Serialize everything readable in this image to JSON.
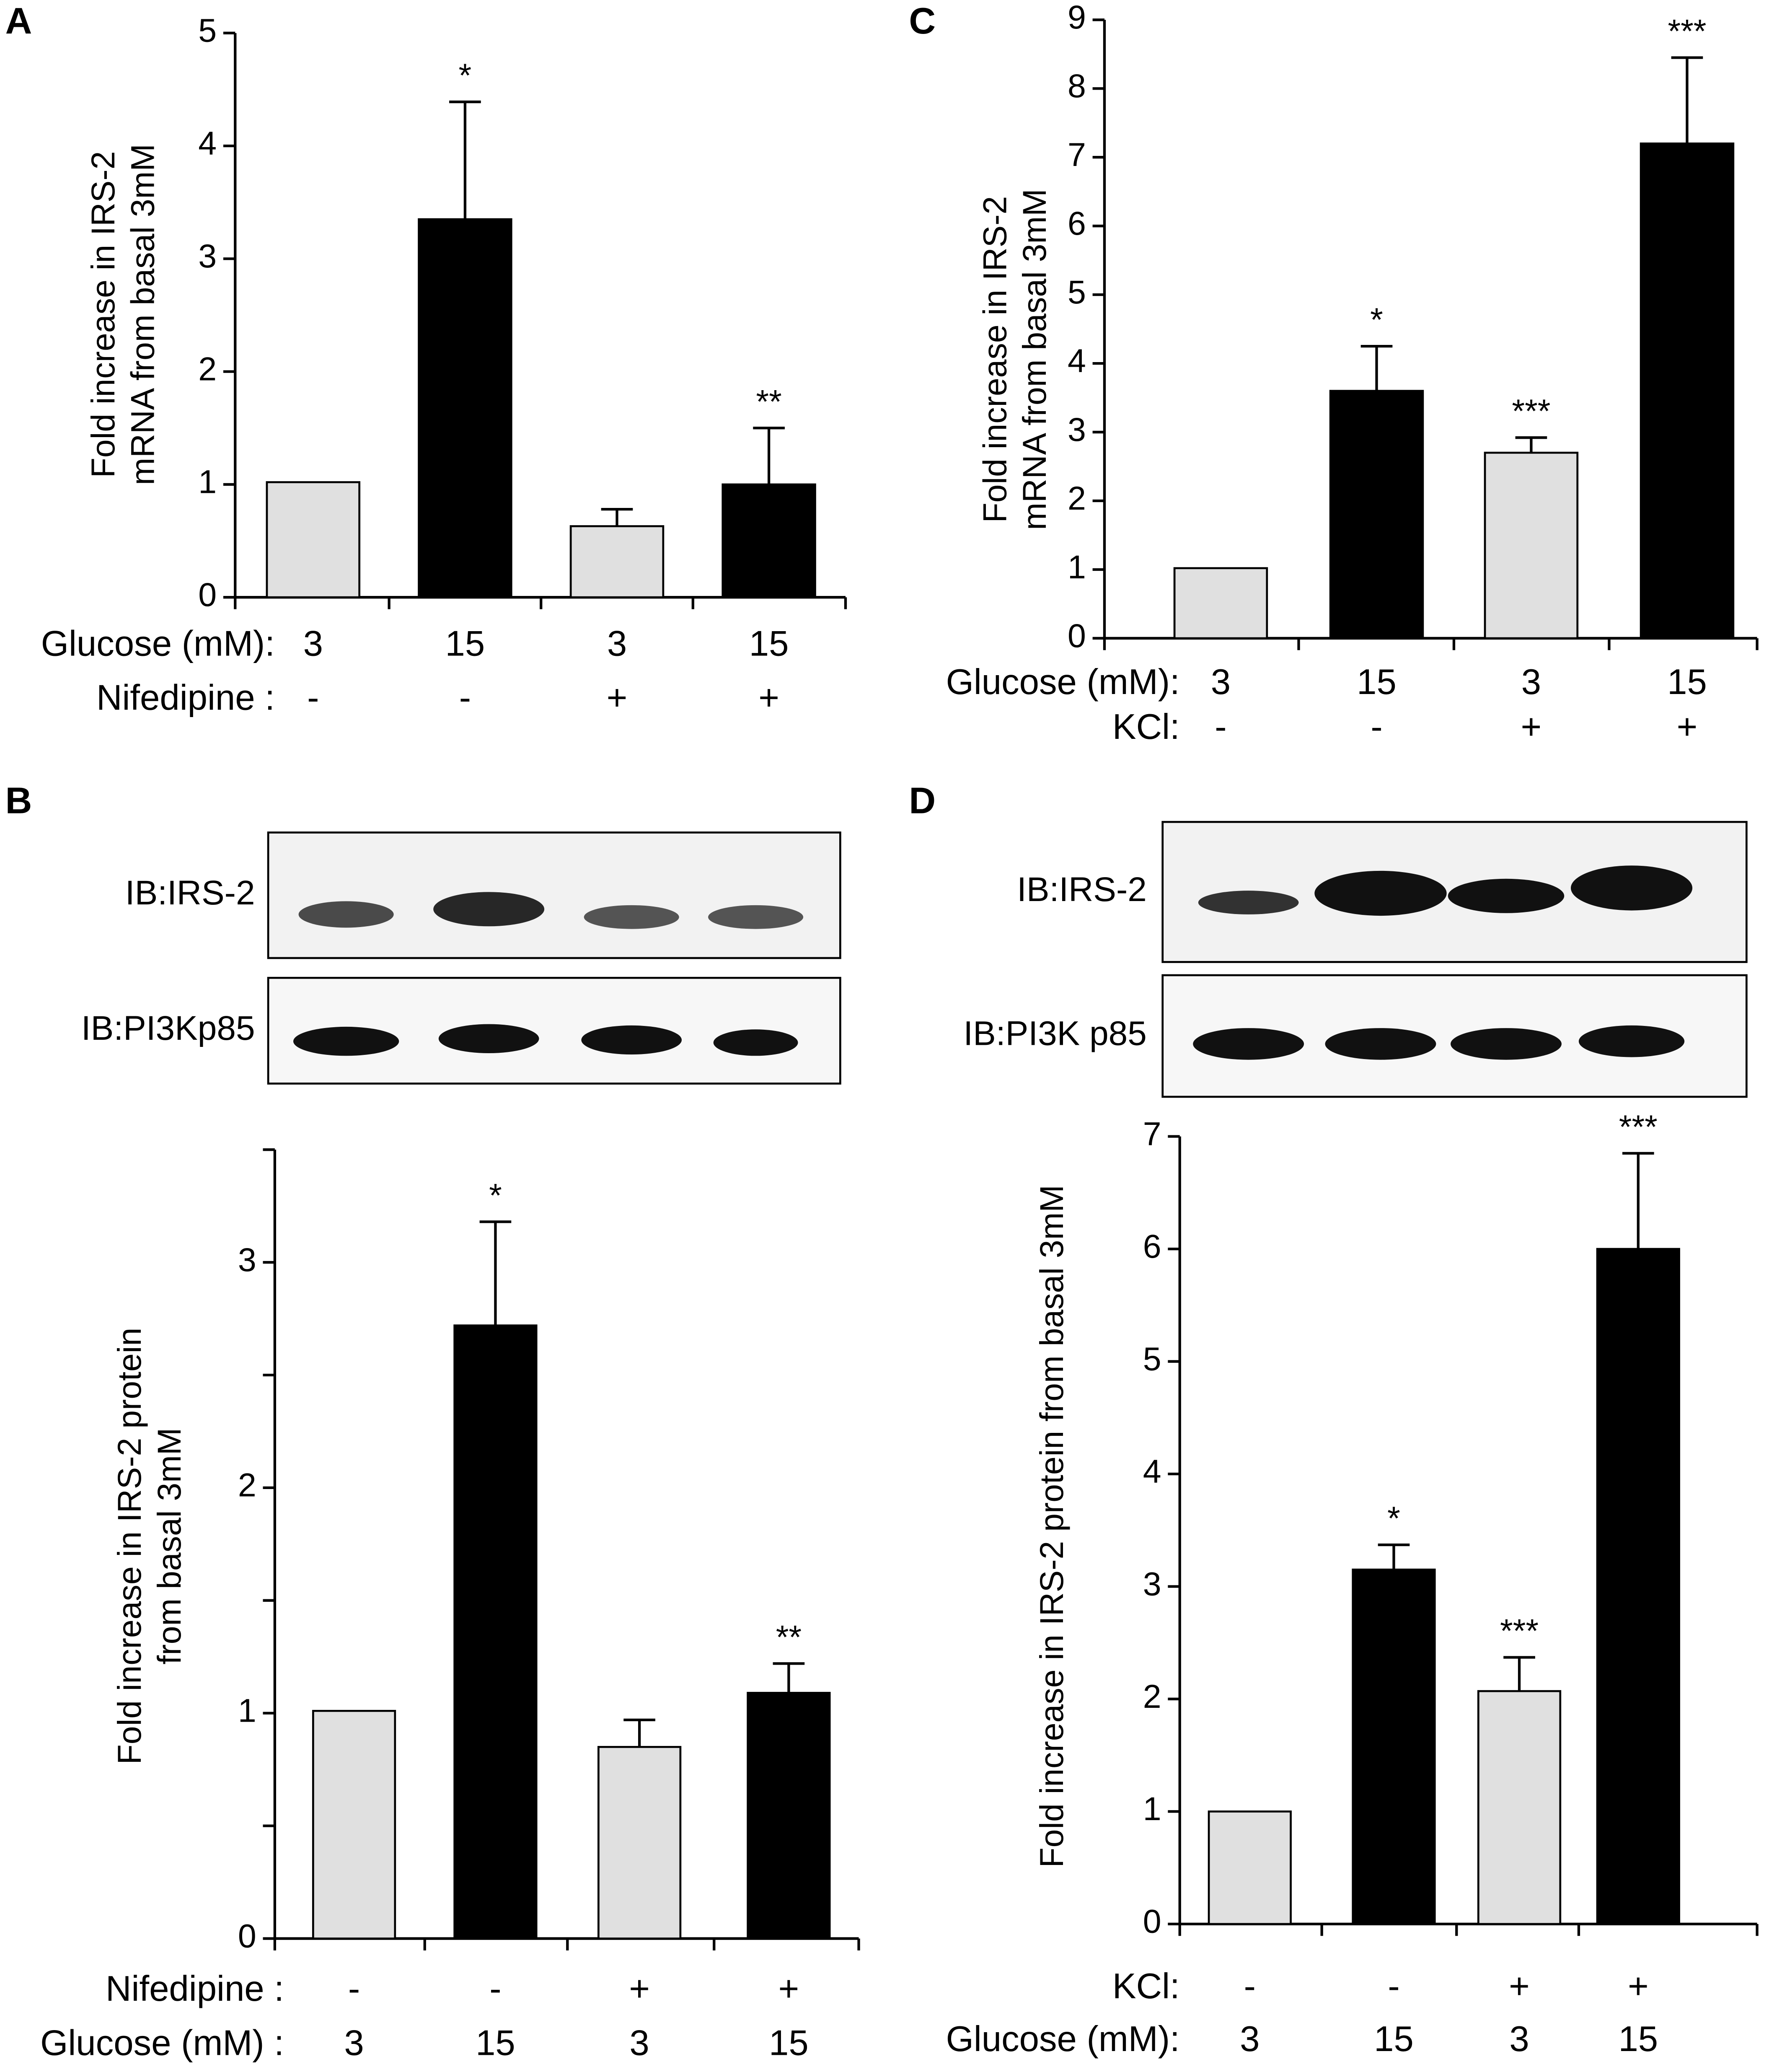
{
  "chart_data": [
    {
      "type": "bar",
      "panel": "A",
      "ylabel": [
        "Fold increase in IRS-2",
        "mRNA from basal 3mM"
      ],
      "values": [
        1.02,
        3.35,
        0.63,
        1.0
      ],
      "errors": [
        null,
        1.04,
        0.15,
        0.5
      ],
      "annotations": [
        null,
        "*",
        null,
        "**"
      ],
      "colors": [
        "#e0e0e0",
        "#000000",
        "#e0e0e0",
        "#000000"
      ],
      "ylim": [
        0,
        5
      ],
      "yticks": [
        0,
        1,
        2,
        3,
        4,
        5
      ],
      "conditions": [
        {
          "label": "Glucose (mM):",
          "values": [
            "3",
            "15",
            "3",
            "15"
          ]
        },
        {
          "label": "Nifedipine :",
          "values": [
            "-",
            "-",
            "+",
            "+"
          ]
        }
      ]
    },
    {
      "type": "bar",
      "panel": "B",
      "blot_labels": [
        "IB:IRS-2",
        "IB:PI3Kp85"
      ],
      "ylabel": [
        "Fold increase in IRS-2 protein",
        "from basal 3mM"
      ],
      "values": [
        1.01,
        2.72,
        0.85,
        1.09
      ],
      "errors": [
        null,
        0.46,
        0.12,
        0.13
      ],
      "annotations": [
        null,
        "*",
        null,
        "**"
      ],
      "colors": [
        "#e0e0e0",
        "#000000",
        "#e0e0e0",
        "#000000"
      ],
      "ylim": [
        0,
        3.5
      ],
      "yticks": [
        0,
        1,
        2,
        3
      ],
      "minor_yticks": [
        0.5,
        1.5,
        2.5,
        3.5
      ],
      "conditions": [
        {
          "label": "Nifedipine :",
          "values": [
            "-",
            "-",
            "+",
            "+"
          ]
        },
        {
          "label": "Glucose (mM) :",
          "values": [
            "3",
            "15",
            "3",
            "15"
          ]
        }
      ]
    },
    {
      "type": "bar",
      "panel": "C",
      "ylabel": [
        "Fold increase in IRS-2",
        "mRNA from basal 3mM"
      ],
      "values": [
        1.02,
        3.6,
        2.7,
        7.2
      ],
      "errors": [
        null,
        0.65,
        0.22,
        1.25
      ],
      "annotations": [
        null,
        "*",
        "***",
        "***"
      ],
      "colors": [
        "#e0e0e0",
        "#000000",
        "#e0e0e0",
        "#000000"
      ],
      "ylim": [
        0,
        9
      ],
      "yticks": [
        0,
        1,
        2,
        3,
        4,
        5,
        6,
        7,
        8,
        9
      ],
      "conditions": [
        {
          "label": "Glucose (mM):",
          "values": [
            "3",
            "15",
            "3",
            "15"
          ]
        },
        {
          "label": "KCl:",
          "values": [
            "-",
            "-",
            "+",
            "+"
          ]
        }
      ]
    },
    {
      "type": "bar",
      "panel": "D",
      "blot_labels": [
        "IB:IRS-2",
        "IB:PI3K p85"
      ],
      "ylabel": [
        "Fold increase in IRS-2 protein from basal 3mM"
      ],
      "values": [
        1.0,
        3.15,
        2.07,
        6.0
      ],
      "errors": [
        null,
        0.22,
        0.3,
        0.85
      ],
      "annotations": [
        null,
        "*",
        "***",
        "***"
      ],
      "colors": [
        "#e0e0e0",
        "#000000",
        "#e0e0e0",
        "#000000"
      ],
      "ylim": [
        0,
        7
      ],
      "yticks": [
        0,
        1,
        2,
        3,
        4,
        5,
        6,
        7
      ],
      "conditions": [
        {
          "label": "KCl:",
          "values": [
            "-",
            "-",
            "+",
            "+"
          ]
        },
        {
          "label": "Glucose (mM):",
          "values": [
            "3",
            "15",
            "3",
            "15"
          ]
        }
      ]
    }
  ]
}
